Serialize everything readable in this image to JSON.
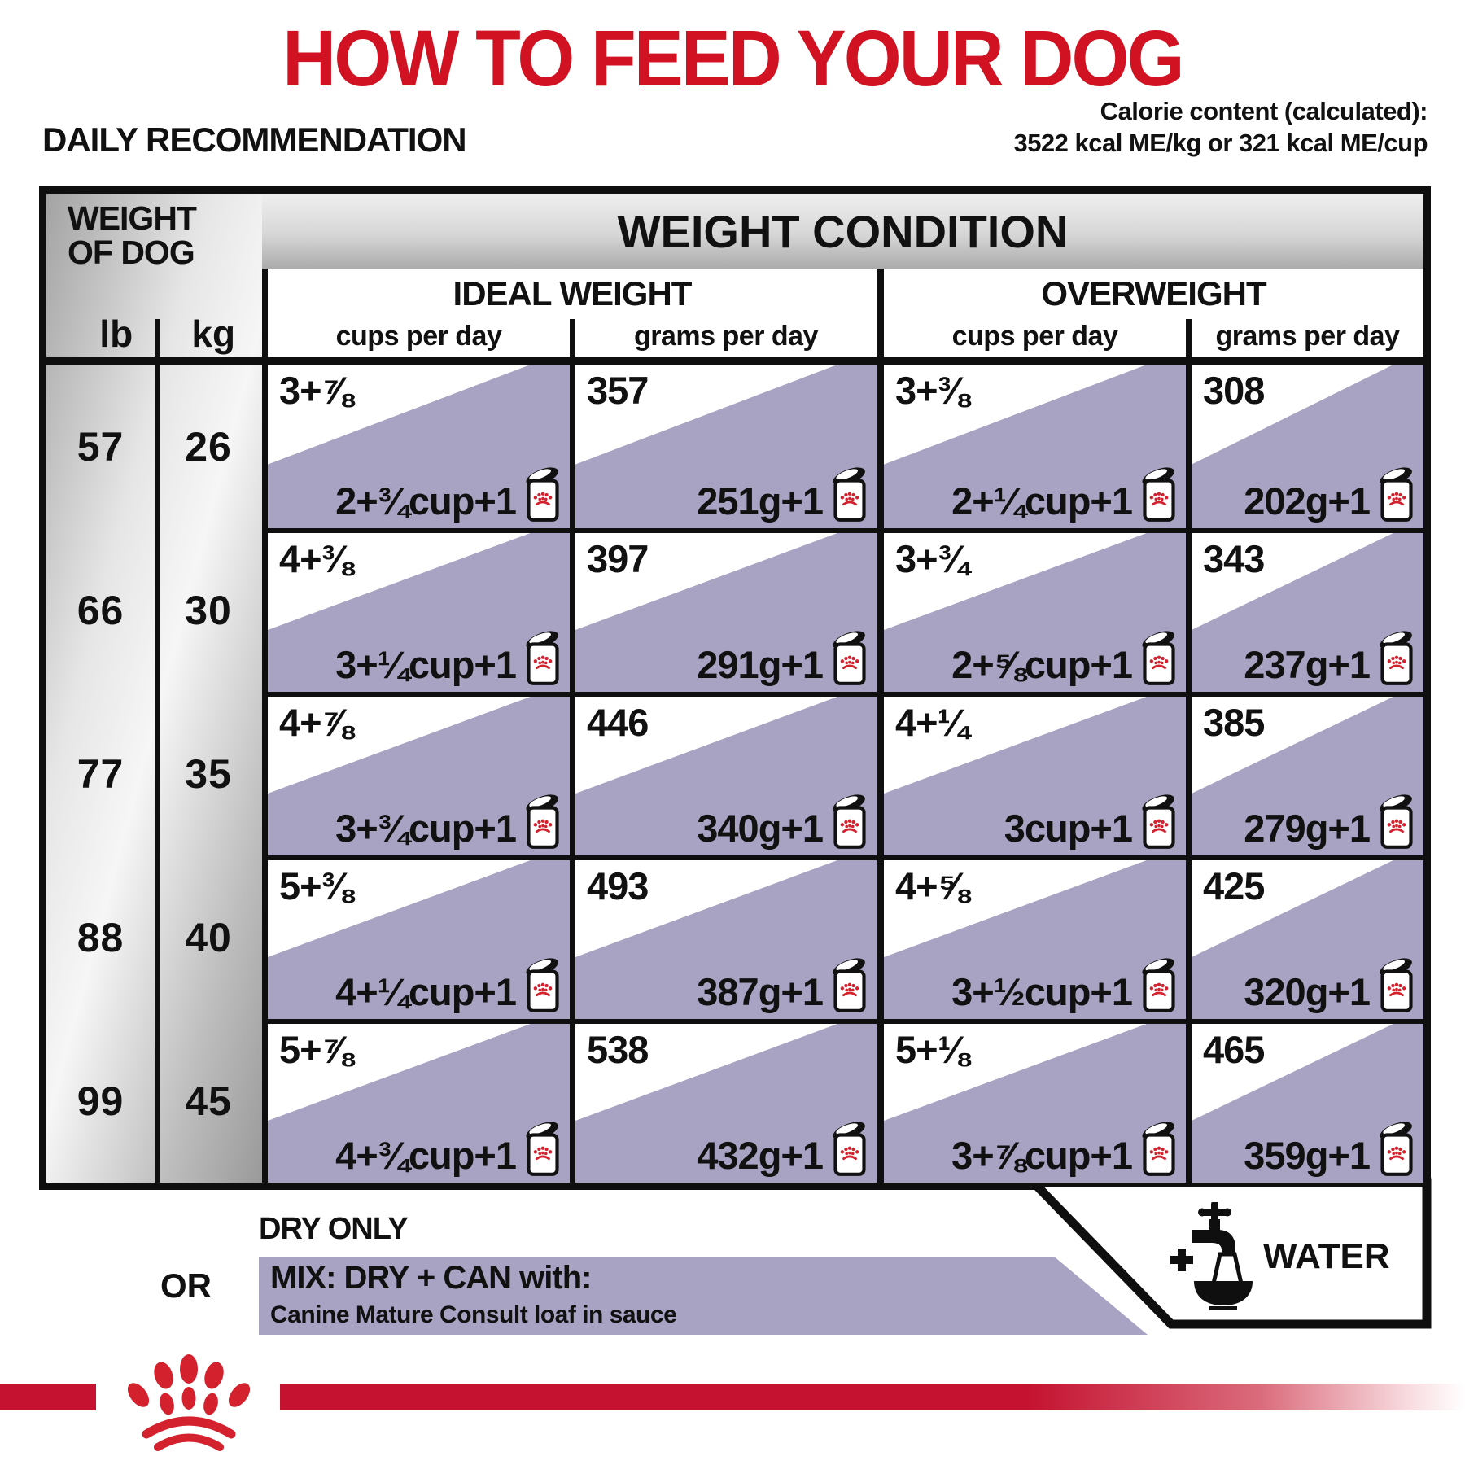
{
  "title": "HOW TO FEED YOUR DOG",
  "subtitle": "DAILY RECOMMENDATION",
  "calorie": {
    "line1": "Calorie content (calculated):",
    "line2": "3522 kcal ME/kg or 321 kcal ME/cup"
  },
  "table": {
    "weight_header_line1": "WEIGHT",
    "weight_header_line2": "OF DOG",
    "lb_label": "lb",
    "kg_label": "kg",
    "condition_header": "WEIGHT CONDITION",
    "ideal_header": "IDEAL WEIGHT",
    "overweight_header": "OVERWEIGHT",
    "cups_label": "cups per day",
    "grams_label": "grams per day",
    "rows": [
      {
        "lb": "57",
        "kg": "26",
        "ic_dry": "3+⅞",
        "ic_mix": "2+¾cup+1",
        "ig_dry": "357",
        "ig_mix": "251g+1",
        "oc_dry": "3+⅜",
        "oc_mix": "2+¼cup+1",
        "og_dry": "308",
        "og_mix": "202g+1"
      },
      {
        "lb": "66",
        "kg": "30",
        "ic_dry": "4+⅜",
        "ic_mix": "3+¼cup+1",
        "ig_dry": "397",
        "ig_mix": "291g+1",
        "oc_dry": "3+¾",
        "oc_mix": "2+⅝cup+1",
        "og_dry": "343",
        "og_mix": "237g+1"
      },
      {
        "lb": "77",
        "kg": "35",
        "ic_dry": "4+⅞",
        "ic_mix": "3+¾cup+1",
        "ig_dry": "446",
        "ig_mix": "340g+1",
        "oc_dry": "4+¼",
        "oc_mix": "3cup+1",
        "og_dry": "385",
        "og_mix": "279g+1"
      },
      {
        "lb": "88",
        "kg": "40",
        "ic_dry": "5+⅜",
        "ic_mix": "4+¼cup+1",
        "ig_dry": "493",
        "ig_mix": "387g+1",
        "oc_dry": "4+⅝",
        "oc_mix": "3+½cup+1",
        "og_dry": "425",
        "og_mix": "320g+1"
      },
      {
        "lb": "99",
        "kg": "45",
        "ic_dry": "5+⅞",
        "ic_mix": "4+¾cup+1",
        "ig_dry": "538",
        "ig_mix": "432g+1",
        "oc_dry": "5+⅛",
        "oc_mix": "3+⅞cup+1",
        "og_dry": "465",
        "og_mix": "359g+1"
      }
    ]
  },
  "legend": {
    "dry_only": "DRY ONLY",
    "or": "OR",
    "mix_title": "MIX: DRY + CAN with:",
    "mix_subtitle": "Canine Mature Consult loaf in sauce",
    "water": "WATER"
  },
  "colors": {
    "accent_red": "#d01222",
    "bar_red": "#c41230",
    "crown_red": "#d3212d",
    "lavender": "#a8a3c2"
  }
}
